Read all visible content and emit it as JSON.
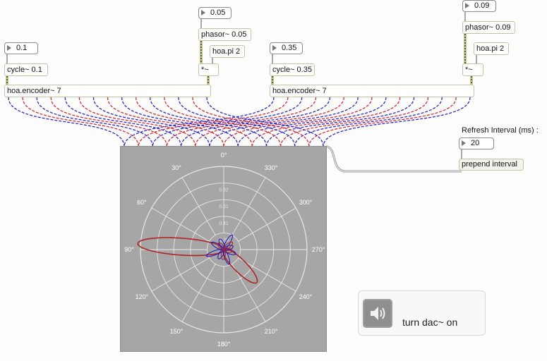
{
  "boxes": {
    "num_01": "0.1",
    "cycle_01": "cycle~ 0.1",
    "num_005": "0.05",
    "phasor_005": "phasor~ 0.05",
    "hoapi_1": "hoa.pi 2",
    "times_1": "*~",
    "encoder_1": "hoa.encoder~ 7",
    "num_035": "0.35",
    "cycle_035": "cycle~ 0.35",
    "encoder_2": "hoa.encoder~ 7",
    "num_009": "0.09",
    "phasor_009": "phasor~ 0.09",
    "hoapi_2": "hoa.pi 2",
    "times_2": "*~",
    "refresh_label": "Refresh Interval (ms) :",
    "num_20": "20",
    "prepend": "prepend interval"
  },
  "scope": {
    "angle_labels": [
      "0°",
      "30°",
      "60°",
      "90°",
      "120°",
      "150°",
      "180°",
      "210°",
      "240°",
      "270°",
      "300°",
      "330°"
    ],
    "radius_labels": [
      "0.82",
      "0.61",
      "0.41",
      "0.20"
    ],
    "positive_color": "#b22222",
    "negative_color": "#1f1fbf",
    "background_color": "#a6a6a6"
  },
  "ezdac": {
    "label": "turn dac~ on",
    "icon": "speaker-icon"
  },
  "colors": {
    "signal_patch_cord": "#c5c98f",
    "signal_stripe": "#3a3a3a",
    "harmonic_red": "#e0282c",
    "harmonic_blue": "#2828d8",
    "object_border": "#bdc7a2"
  }
}
